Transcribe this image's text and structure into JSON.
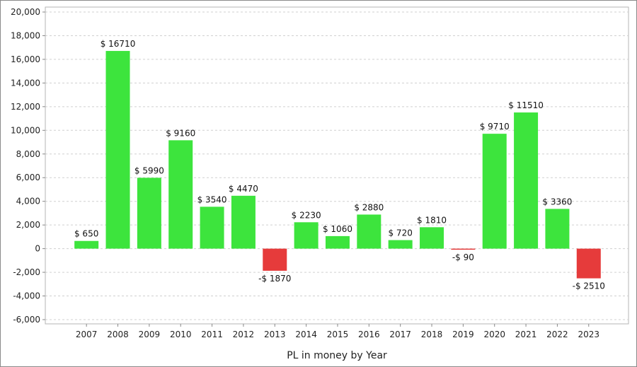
{
  "chart_data": {
    "type": "bar",
    "title": "",
    "xlabel": "PL in money by Year",
    "ylabel": "",
    "categories": [
      "2007",
      "2008",
      "2009",
      "2010",
      "2011",
      "2012",
      "2013",
      "2014",
      "2015",
      "2016",
      "2017",
      "2018",
      "2019",
      "2020",
      "2021",
      "2022",
      "2023"
    ],
    "values": [
      650,
      16710,
      5990,
      9160,
      3540,
      4470,
      -1870,
      2230,
      1060,
      2880,
      720,
      1810,
      -90,
      9710,
      11510,
      3360,
      -2510
    ],
    "data_labels": [
      "$ 650",
      "$ 16710",
      "$ 5990",
      "$ 9160",
      "$ 3540",
      "$ 4470",
      "-$ 1870",
      "$ 2230",
      "$ 1060",
      "$ 2880",
      "$ 720",
      "$ 1810",
      "-$ 90",
      "$ 9710",
      "$ 11510",
      "$ 3360",
      "-$ 2510"
    ],
    "ylim": [
      -6000,
      20000
    ],
    "yticks": [
      -6000,
      -4000,
      -2000,
      0,
      2000,
      4000,
      6000,
      8000,
      10000,
      12000,
      14000,
      16000,
      18000,
      20000
    ],
    "ytick_labels": [
      "-6,000",
      "-4,000",
      "-2,000",
      "0",
      "2,000",
      "4,000",
      "6,000",
      "8,000",
      "10,000",
      "12,000",
      "14,000",
      "16,000",
      "18,000",
      "20,000"
    ],
    "grid": true,
    "colors": {
      "positive": "#3de43d",
      "negative": "#e63b3b",
      "grid": "#d0d0d0"
    }
  }
}
